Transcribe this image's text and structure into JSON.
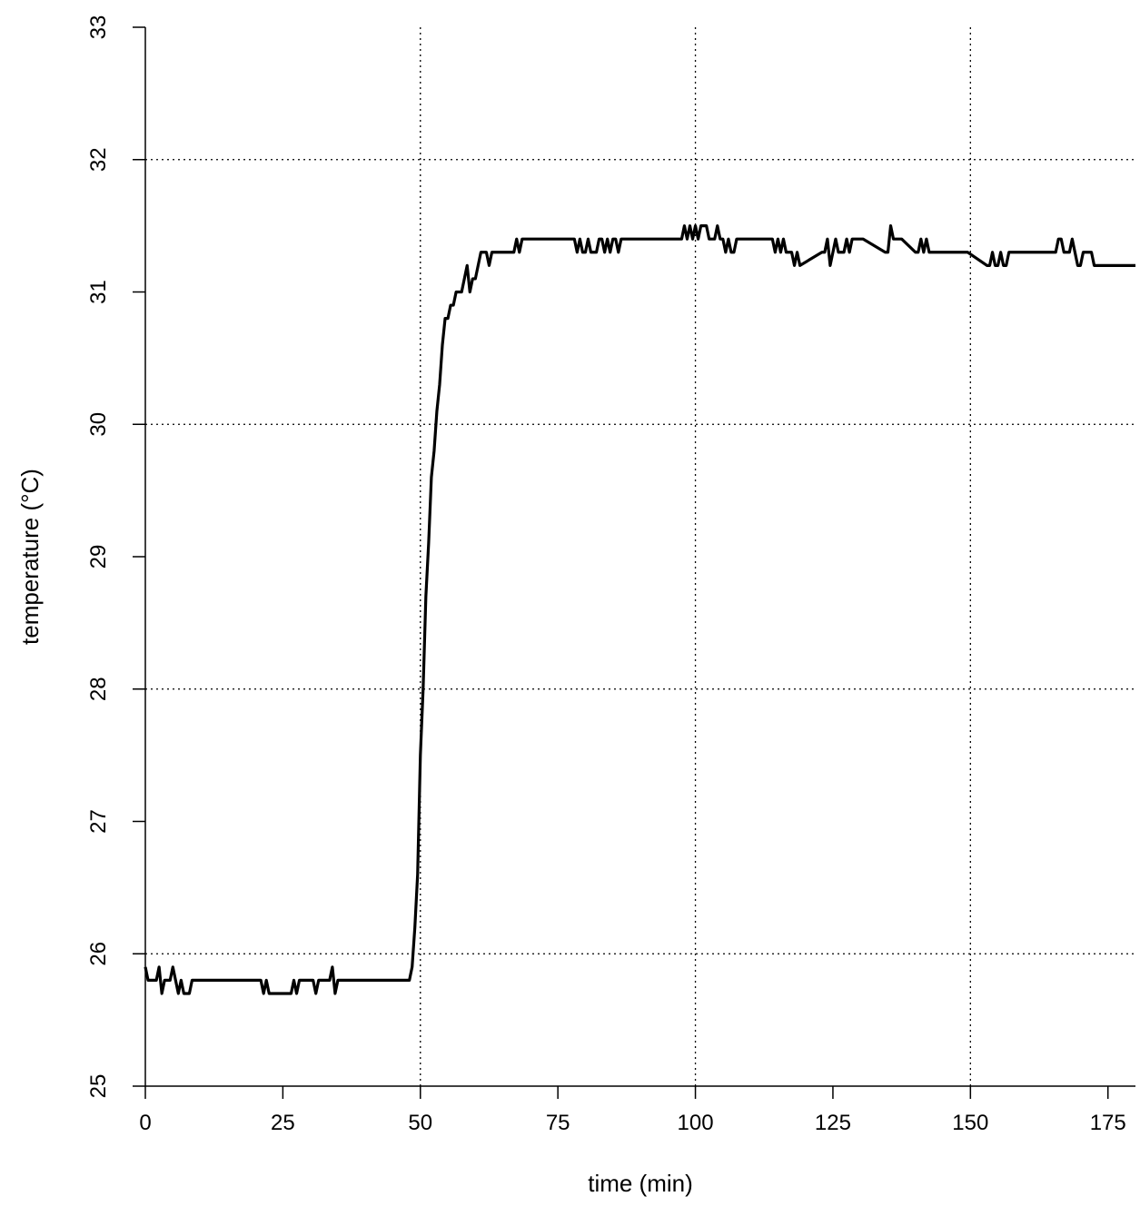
{
  "chart_data": {
    "type": "line",
    "xlabel": "time (min)",
    "ylabel": "temperature (°C)",
    "xlim": [
      0,
      180
    ],
    "ylim": [
      25,
      33
    ],
    "xticks": [
      0,
      25,
      50,
      75,
      100,
      125,
      150,
      175
    ],
    "yticks": [
      25,
      26,
      27,
      28,
      29,
      30,
      31,
      32,
      33
    ],
    "grid": true,
    "x_gridlines": [
      50,
      100,
      150
    ],
    "y_gridlines": [
      26,
      28,
      30,
      32
    ],
    "series": [
      {
        "color": "#000000",
        "x": [
          0,
          0.5,
          2,
          2.5,
          3,
          3.5,
          4,
          4.5,
          5,
          5.5,
          6,
          6.5,
          7,
          7.5,
          8,
          8.5,
          21,
          21.5,
          22,
          22.5,
          23,
          26.5,
          27,
          27.5,
          28,
          28.5,
          30.5,
          31,
          31.5,
          33.5,
          34,
          34.5,
          35,
          48,
          48.5,
          49,
          49.5,
          50,
          50.5,
          51,
          51.5,
          52,
          52.5,
          53,
          53.5,
          54,
          54.5,
          55,
          55.5,
          56,
          56.5,
          57,
          57.5,
          58,
          58.5,
          59,
          59.5,
          60,
          60.5,
          61,
          61.5,
          62,
          62.5,
          63,
          67,
          67.5,
          68,
          68.5,
          78,
          78.5,
          79,
          79.5,
          80,
          80.5,
          81,
          81.5,
          82,
          82.5,
          83,
          83.5,
          84,
          84.5,
          85,
          85.5,
          86,
          86.5,
          87,
          87.5,
          97.5,
          98,
          98.5,
          99,
          99.5,
          100,
          100.5,
          101,
          101.5,
          102,
          102.5,
          103,
          103.5,
          104,
          104.5,
          105,
          105.5,
          106,
          106.5,
          107,
          107.5,
          113.5,
          114,
          114.5,
          115,
          115.5,
          116,
          116.5,
          117,
          117.5,
          118,
          118.5,
          119,
          123,
          123.5,
          124,
          124.5,
          125,
          125.5,
          126,
          126.5,
          127,
          127.5,
          128,
          128.5,
          130,
          130.5,
          134.5,
          135,
          135.5,
          136,
          137,
          137.5,
          140,
          140.5,
          141,
          141.5,
          142,
          142.5,
          149,
          149.5,
          153,
          153.5,
          154,
          154.5,
          155,
          155.5,
          156,
          156.5,
          157,
          165.5,
          166,
          166.5,
          167,
          168,
          168.5,
          169,
          169.5,
          170,
          170.5,
          172,
          172.5,
          180
        ],
        "y": [
          25.9,
          25.8,
          25.8,
          25.9,
          25.7,
          25.8,
          25.8,
          25.8,
          25.9,
          25.8,
          25.7,
          25.8,
          25.7,
          25.7,
          25.7,
          25.8,
          25.8,
          25.7,
          25.8,
          25.7,
          25.7,
          25.7,
          25.8,
          25.7,
          25.8,
          25.8,
          25.8,
          25.7,
          25.8,
          25.8,
          25.9,
          25.7,
          25.8,
          25.8,
          25.9,
          26.2,
          26.6,
          27.5,
          28.0,
          28.7,
          29.1,
          29.6,
          29.8,
          30.1,
          30.3,
          30.6,
          30.8,
          30.8,
          30.9,
          30.9,
          31.0,
          31.0,
          31.0,
          31.1,
          31.2,
          31.0,
          31.1,
          31.1,
          31.2,
          31.3,
          31.3,
          31.3,
          31.2,
          31.3,
          31.3,
          31.4,
          31.3,
          31.4,
          31.4,
          31.3,
          31.4,
          31.3,
          31.3,
          31.4,
          31.3,
          31.3,
          31.3,
          31.4,
          31.4,
          31.3,
          31.4,
          31.3,
          31.4,
          31.4,
          31.3,
          31.4,
          31.4,
          31.4,
          31.4,
          31.5,
          31.4,
          31.5,
          31.4,
          31.5,
          31.4,
          31.5,
          31.5,
          31.5,
          31.4,
          31.4,
          31.4,
          31.5,
          31.4,
          31.4,
          31.3,
          31.4,
          31.3,
          31.3,
          31.4,
          31.4,
          31.4,
          31.3,
          31.4,
          31.3,
          31.4,
          31.3,
          31.3,
          31.3,
          31.2,
          31.3,
          31.2,
          31.3,
          31.3,
          31.4,
          31.2,
          31.3,
          31.4,
          31.3,
          31.3,
          31.3,
          31.4,
          31.3,
          31.4,
          31.4,
          31.4,
          31.3,
          31.3,
          31.5,
          31.4,
          31.4,
          31.4,
          31.3,
          31.3,
          31.4,
          31.3,
          31.4,
          31.3,
          31.3,
          31.3,
          31.2,
          31.2,
          31.3,
          31.2,
          31.2,
          31.3,
          31.2,
          31.2,
          31.3,
          31.3,
          31.4,
          31.4,
          31.3,
          31.3,
          31.4,
          31.3,
          31.2,
          31.2,
          31.3,
          31.3,
          31.2,
          31.2
        ]
      }
    ]
  }
}
